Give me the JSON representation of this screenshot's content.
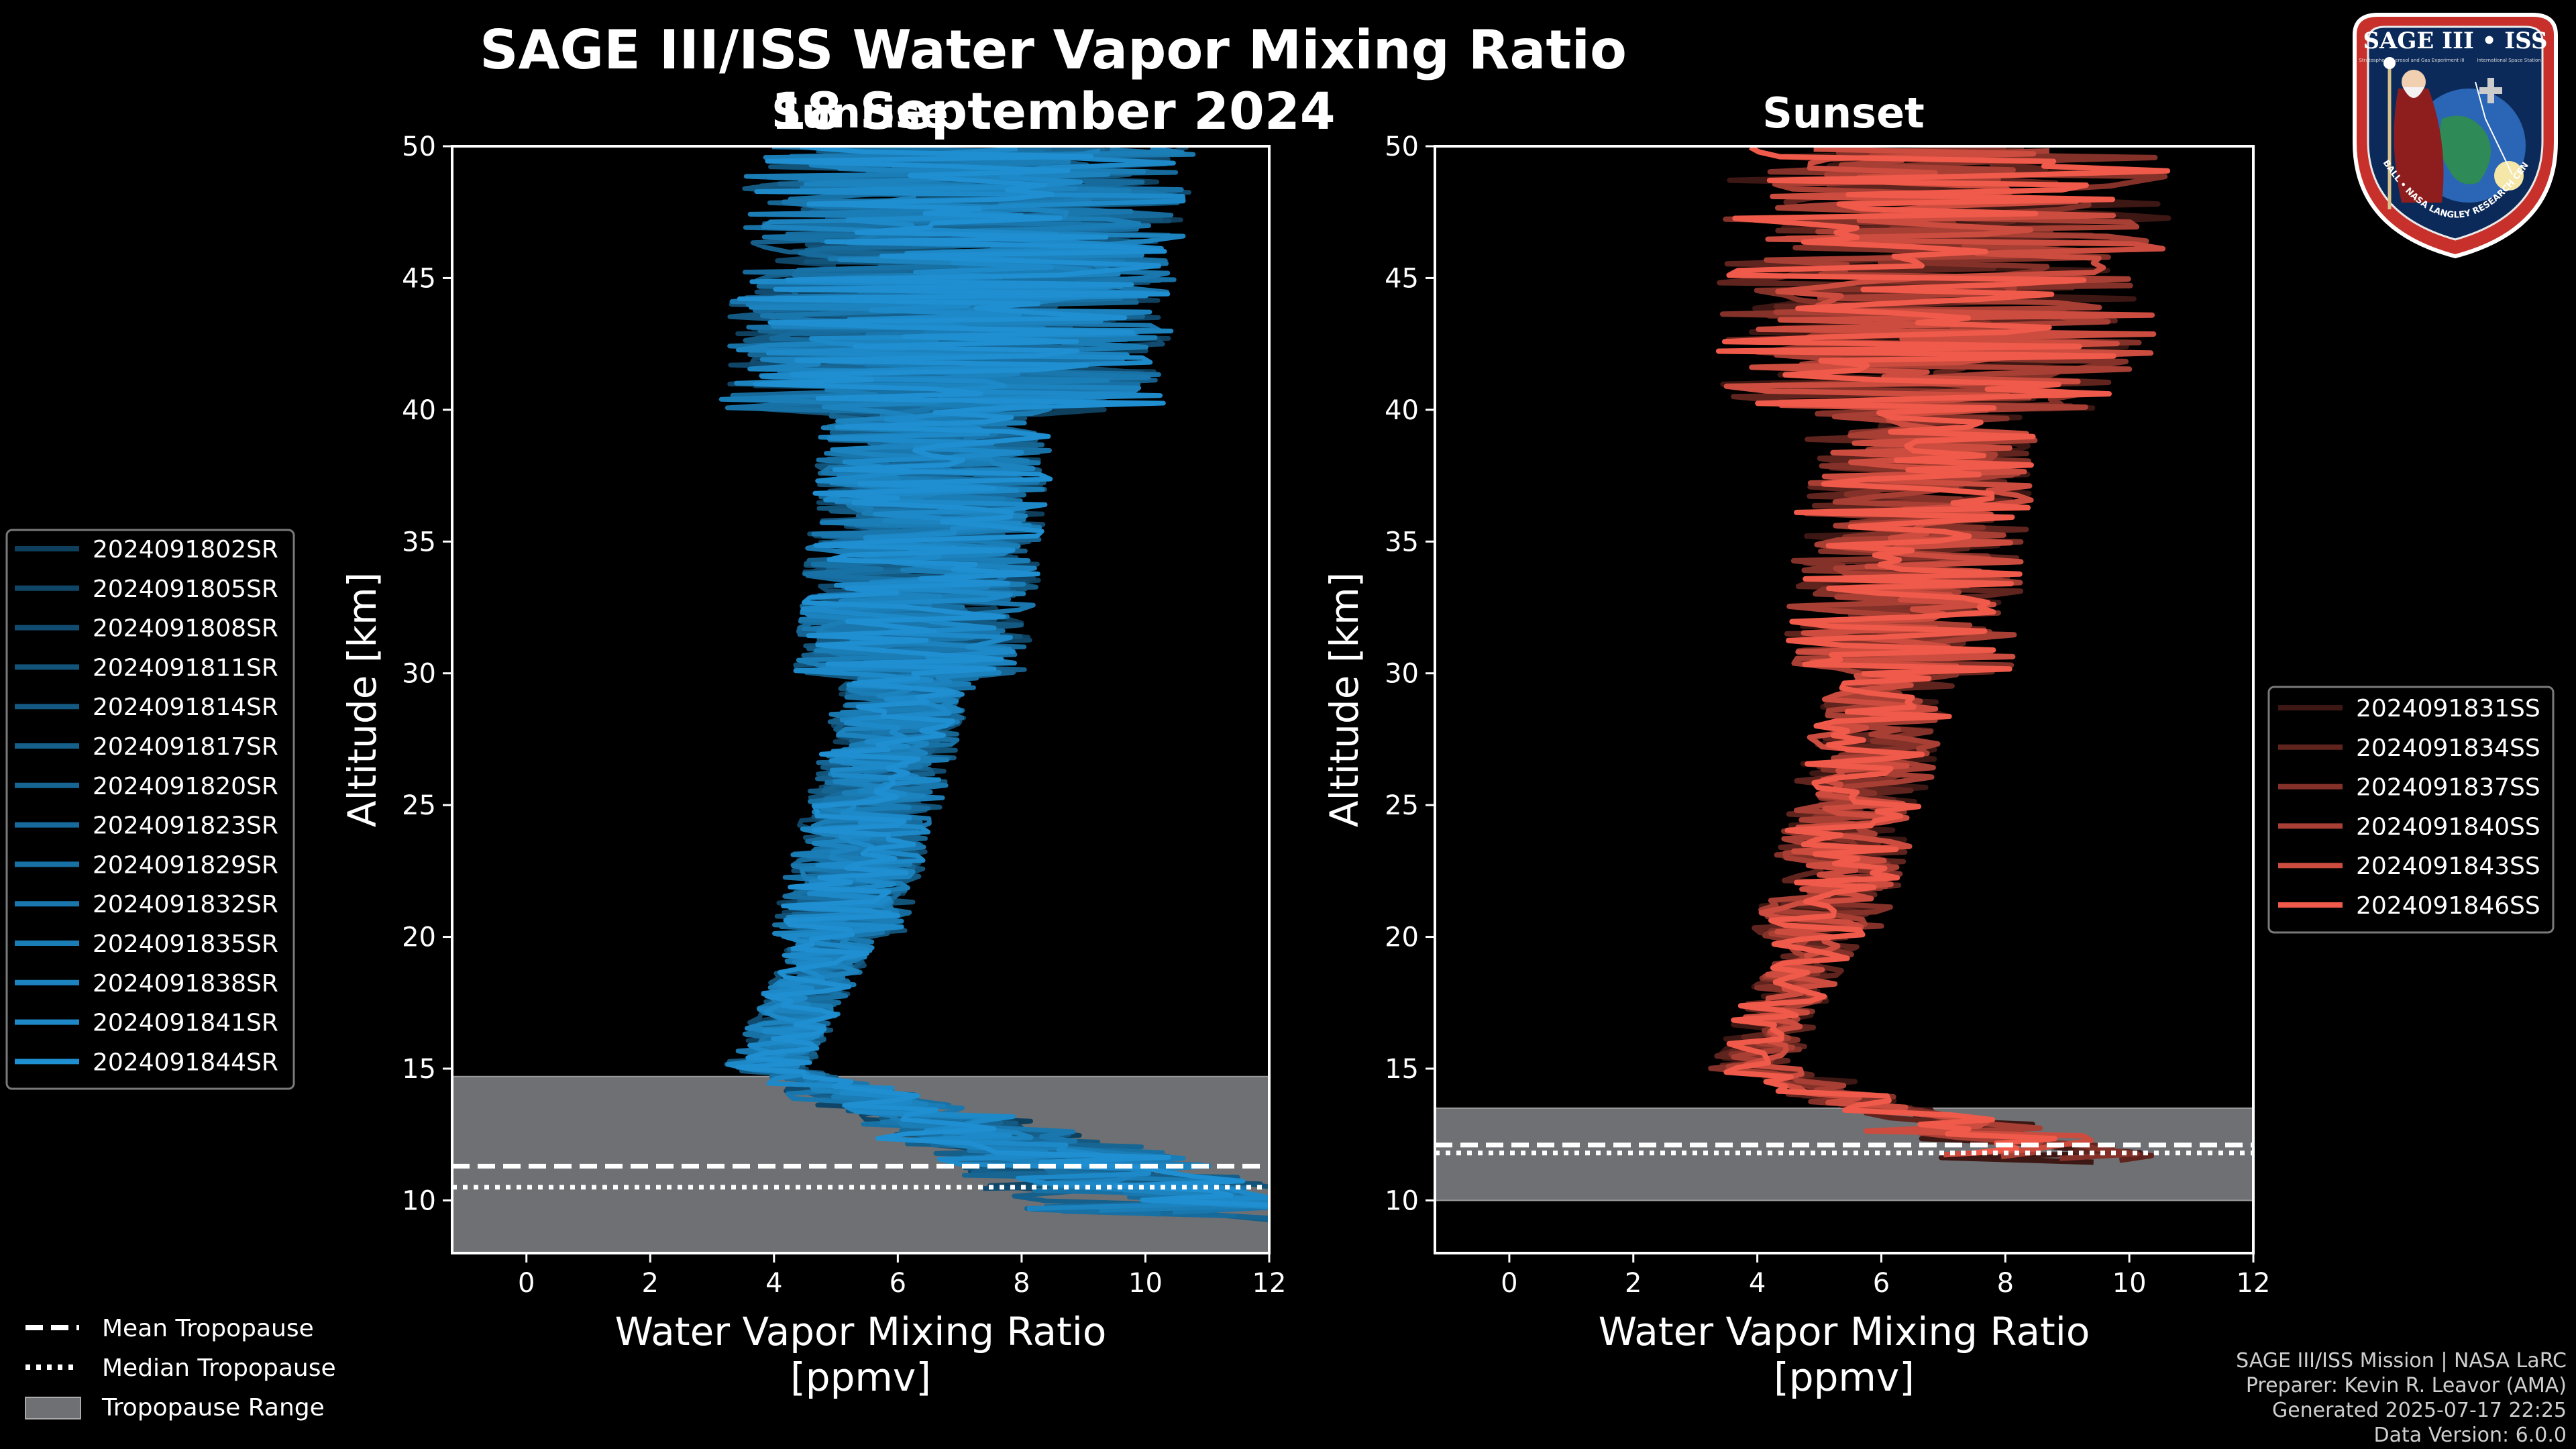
{
  "title": "SAGE III/ISS Water Vapor Mixing Ratio",
  "date": "18 September 2024",
  "panels": {
    "sunrise_label": "Sunrise",
    "sunset_label": "Sunset"
  },
  "colors": {
    "sunrise": "#1f8fd1",
    "sunset": "#f05a4a",
    "tropopause_range": "#6e7073",
    "background": "#000000"
  },
  "chart_data": [
    {
      "type": "line",
      "panel": "Sunrise",
      "xlabel": "Water Vapor Mixing Ratio",
      "xlabel_unit": "[ppmv]",
      "ylabel": "Altitude [km]",
      "xlim": [
        -1.2,
        12
      ],
      "ylim": [
        8,
        50
      ],
      "xticks": [
        "0",
        "2",
        "4",
        "6",
        "8",
        "10",
        "12"
      ],
      "yticks": [
        "10",
        "15",
        "20",
        "25",
        "30",
        "35",
        "40",
        "45",
        "50"
      ],
      "series": [
        {
          "name": "2024091802SR"
        },
        {
          "name": "2024091805SR"
        },
        {
          "name": "2024091808SR"
        },
        {
          "name": "2024091811SR"
        },
        {
          "name": "2024091814SR"
        },
        {
          "name": "2024091817SR"
        },
        {
          "name": "2024091820SR"
        },
        {
          "name": "2024091823SR"
        },
        {
          "name": "2024091829SR"
        },
        {
          "name": "2024091832SR"
        },
        {
          "name": "2024091835SR"
        },
        {
          "name": "2024091838SR"
        },
        {
          "name": "2024091841SR"
        },
        {
          "name": "2024091844SR"
        }
      ],
      "tropopause": {
        "range": [
          8,
          14.7
        ],
        "mean": 11.3,
        "median": 10.5
      },
      "legend_position": "left"
    },
    {
      "type": "line",
      "panel": "Sunset",
      "xlabel": "Water Vapor Mixing Ratio",
      "xlabel_unit": "[ppmv]",
      "ylabel": "Altitude [km]",
      "xlim": [
        -1.2,
        12
      ],
      "ylim": [
        8,
        50
      ],
      "xticks": [
        "0",
        "2",
        "4",
        "6",
        "8",
        "10",
        "12"
      ],
      "yticks": [
        "10",
        "15",
        "20",
        "25",
        "30",
        "35",
        "40",
        "45",
        "50"
      ],
      "series": [
        {
          "name": "2024091831SS"
        },
        {
          "name": "2024091834SS"
        },
        {
          "name": "2024091837SS"
        },
        {
          "name": "2024091840SS"
        },
        {
          "name": "2024091843SS"
        },
        {
          "name": "2024091846SS"
        }
      ],
      "tropopause": {
        "range": [
          10,
          13.5
        ],
        "mean": 12.1,
        "median": 11.8
      },
      "legend_position": "right"
    }
  ],
  "legend_common": {
    "mean": "Mean Tropopause",
    "median": "Median Tropopause",
    "range": "Tropopause Range"
  },
  "credits": {
    "line1": "SAGE III/ISS Mission | NASA LaRC",
    "line2": "Preparer: Kevin R. Leavor (AMA)",
    "line3": "Generated 2025-07-17 22:25",
    "line4": "Data Version: 6.0.0"
  },
  "logo": {
    "top": "SAGE III • ISS",
    "ring": "BALL • NASA LANGLEY RESEARCH CENTER • TAS-I • ESA",
    "sub_left": "Stratospheric Aerosol and Gas Experiment III",
    "sub_right": "International Space Station"
  }
}
